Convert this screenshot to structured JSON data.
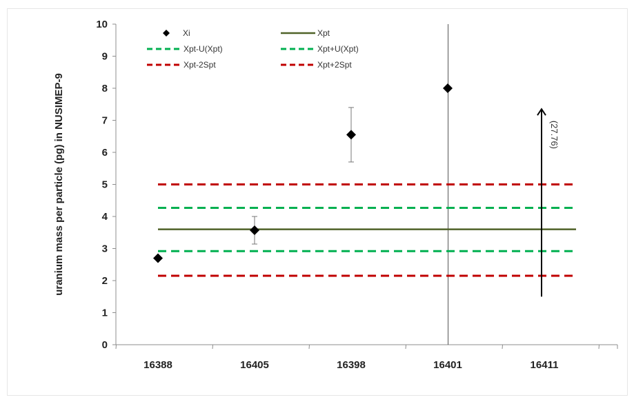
{
  "chart_data": {
    "type": "scatter",
    "title": "",
    "xlabel": "",
    "ylabel": "uranium mass per particle (pg) in NUSIMEP-9",
    "categories": [
      "16388",
      "16405",
      "16398",
      "16401",
      "16411"
    ],
    "ylim": [
      0,
      10
    ],
    "yticks": [
      "0",
      "1",
      "2",
      "3",
      "4",
      "5",
      "6",
      "7",
      "8",
      "9",
      "10"
    ],
    "grid": false,
    "legend_position": "top-left",
    "series": [
      {
        "name": "Xi",
        "kind": "points",
        "color": "#000000",
        "points": [
          {
            "category": "16388",
            "y": 2.7,
            "err_low": null,
            "err_high": null
          },
          {
            "category": "16405",
            "y": 3.57,
            "err_low": 3.14,
            "err_high": 4.0
          },
          {
            "category": "16398",
            "y": 6.55,
            "err_low": 5.7,
            "err_high": 7.4
          },
          {
            "category": "16401",
            "y": 8.0,
            "err_low": null,
            "err_high": null
          }
        ]
      },
      {
        "name": "Xpt",
        "kind": "hline",
        "y": 3.6,
        "color": "#4f6228",
        "dash": "solid"
      },
      {
        "name": "Xpt-U(Xpt)",
        "kind": "hline",
        "y": 2.92,
        "color": "#00b050",
        "dash": "dashed"
      },
      {
        "name": "Xpt+U(Xpt)",
        "kind": "hline",
        "y": 4.27,
        "color": "#00b050",
        "dash": "dashed"
      },
      {
        "name": "Xpt-2Spt",
        "kind": "hline",
        "y": 2.15,
        "color": "#c00000",
        "dash": "dashed"
      },
      {
        "name": "Xpt+2Spt",
        "kind": "hline",
        "y": 5.0,
        "color": "#c00000",
        "dash": "dashed"
      }
    ],
    "annotations": [
      {
        "text": "(27.76)",
        "category": "16411",
        "y_start": 1.5,
        "y_end": 7.35,
        "type": "arrow-up"
      }
    ],
    "vertical_line": {
      "category": "16401",
      "y_from": 0,
      "y_to": 10
    }
  }
}
